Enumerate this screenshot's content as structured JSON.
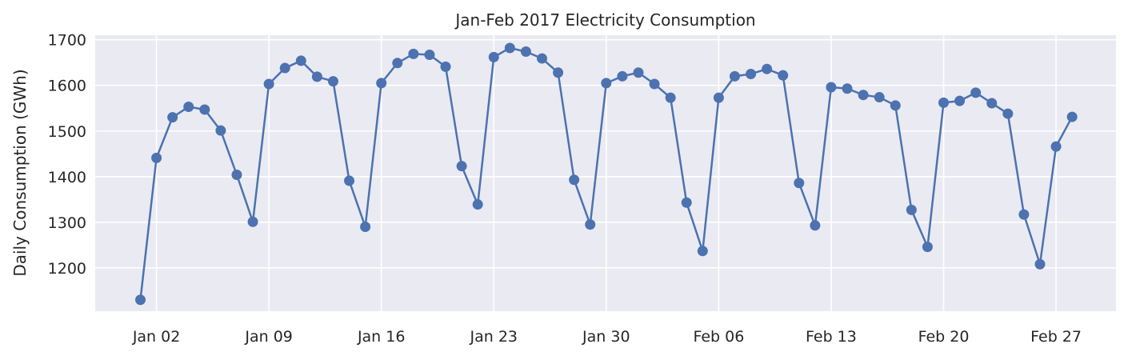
{
  "chart_data": {
    "type": "line",
    "title": "Jan-Feb 2017 Electricity Consumption",
    "xlabel": "",
    "ylabel": "Daily Consumption (GWh)",
    "x_start": "2017-01-01",
    "x_ticks": [
      "Jan 02",
      "Jan 09",
      "Jan 16",
      "Jan 23",
      "Jan 30",
      "Feb 06",
      "Feb 13",
      "Feb 20",
      "Feb 27"
    ],
    "y_ticks": [
      1200,
      1300,
      1400,
      1500,
      1600,
      1700
    ],
    "ylim": [
      1105,
      1710
    ],
    "grid": true,
    "colors": {
      "line": "#4c72b0",
      "plot_bg": "#eaeaf2",
      "grid": "#ffffff",
      "text": "#262626"
    },
    "series": [
      {
        "values": [
          1130,
          1441,
          1530,
          1553,
          1547,
          1501,
          1404,
          1301,
          1603,
          1638,
          1654,
          1619,
          1609,
          1391,
          1290,
          1605,
          1649,
          1669,
          1667,
          1641,
          1423,
          1339,
          1662,
          1682,
          1674,
          1659,
          1628,
          1393,
          1295,
          1605,
          1620,
          1628,
          1603,
          1573,
          1343,
          1237,
          1573,
          1620,
          1625,
          1636,
          1622,
          1386,
          1293,
          1596,
          1593,
          1579,
          1574,
          1556,
          1327,
          1246,
          1562,
          1566,
          1584,
          1561,
          1538,
          1317,
          1208,
          1466,
          1531
        ]
      }
    ]
  }
}
